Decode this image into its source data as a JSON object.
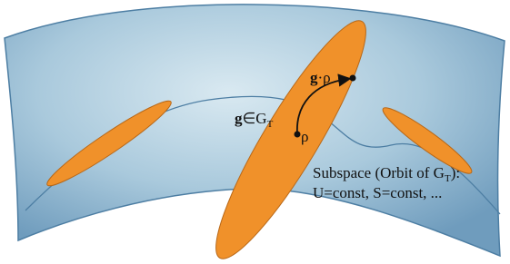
{
  "labels": {
    "g_rho": {
      "bold": "g",
      "text": "·ρ"
    },
    "g_in": {
      "bold": "g",
      "text": "∈G",
      "sub": "T"
    },
    "rho": "ρ",
    "subspace": {
      "line1": "Subspace (Orbit of G",
      "sub": "T",
      "line1_end": "):",
      "line2": "U=const, S=const, ..."
    }
  }
}
